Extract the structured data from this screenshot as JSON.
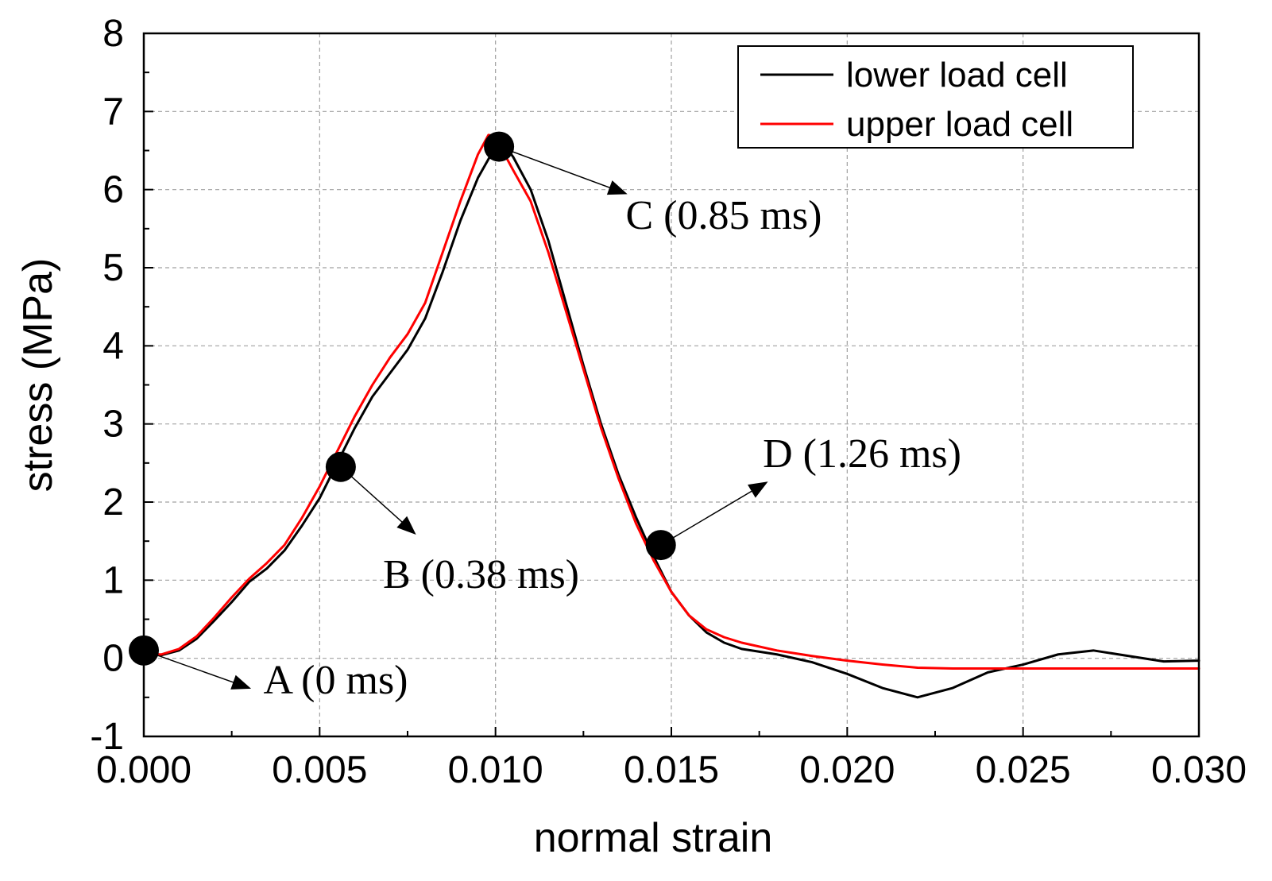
{
  "chart_data": {
    "type": "line",
    "title": "",
    "xlabel": "normal strain",
    "ylabel": "stress (MPa)",
    "xlim": [
      0.0,
      0.03
    ],
    "ylim": [
      -1,
      8
    ],
    "x_ticks": [
      "0.000",
      "0.005",
      "0.010",
      "0.015",
      "0.020",
      "0.025",
      "0.030"
    ],
    "x_tick_values": [
      0.0,
      0.005,
      0.01,
      0.015,
      0.02,
      0.025,
      0.03
    ],
    "y_ticks": [
      "-1",
      "0",
      "1",
      "2",
      "3",
      "4",
      "5",
      "6",
      "7",
      "8"
    ],
    "y_tick_values": [
      -1,
      0,
      1,
      2,
      3,
      4,
      5,
      6,
      7,
      8
    ],
    "grid": true,
    "legend_position": "top-right",
    "series": [
      {
        "name": "lower load cell",
        "color": "#000000",
        "x": [
          0.0,
          0.0005,
          0.001,
          0.0015,
          0.002,
          0.0025,
          0.003,
          0.0035,
          0.004,
          0.0045,
          0.005,
          0.0055,
          0.006,
          0.0065,
          0.007,
          0.0075,
          0.008,
          0.0085,
          0.009,
          0.0095,
          0.01,
          0.0102,
          0.0105,
          0.011,
          0.0115,
          0.012,
          0.0125,
          0.013,
          0.0135,
          0.014,
          0.0145,
          0.015,
          0.0155,
          0.016,
          0.0165,
          0.017,
          0.018,
          0.019,
          0.02,
          0.021,
          0.022,
          0.023,
          0.024,
          0.025,
          0.026,
          0.027,
          0.028,
          0.029,
          0.03
        ],
        "y": [
          0.05,
          0.04,
          0.1,
          0.25,
          0.48,
          0.72,
          0.98,
          1.15,
          1.38,
          1.7,
          2.05,
          2.5,
          2.95,
          3.35,
          3.65,
          3.95,
          4.35,
          4.95,
          5.6,
          6.15,
          6.55,
          6.6,
          6.42,
          6.0,
          5.35,
          4.55,
          3.75,
          3.0,
          2.35,
          1.8,
          1.3,
          0.85,
          0.55,
          0.33,
          0.2,
          0.12,
          0.05,
          -0.05,
          -0.2,
          -0.38,
          -0.5,
          -0.38,
          -0.18,
          -0.08,
          0.05,
          0.1,
          0.03,
          -0.04,
          -0.03
        ]
      },
      {
        "name": "upper load cell",
        "color": "#ff0000",
        "x": [
          0.0,
          0.0005,
          0.001,
          0.0015,
          0.002,
          0.0025,
          0.003,
          0.0035,
          0.004,
          0.0045,
          0.005,
          0.0055,
          0.006,
          0.0065,
          0.007,
          0.0075,
          0.008,
          0.0085,
          0.009,
          0.0095,
          0.0098,
          0.01,
          0.0102,
          0.0105,
          0.011,
          0.0115,
          0.012,
          0.0125,
          0.013,
          0.0135,
          0.014,
          0.0145,
          0.015,
          0.0155,
          0.016,
          0.0165,
          0.017,
          0.018,
          0.019,
          0.02,
          0.021,
          0.022,
          0.023,
          0.024,
          0.025,
          0.026,
          0.027,
          0.028,
          0.029,
          0.03
        ],
        "y": [
          0.05,
          0.05,
          0.12,
          0.28,
          0.52,
          0.78,
          1.02,
          1.22,
          1.45,
          1.8,
          2.2,
          2.65,
          3.1,
          3.5,
          3.85,
          4.15,
          4.55,
          5.2,
          5.85,
          6.45,
          6.7,
          6.68,
          6.5,
          6.25,
          5.85,
          5.2,
          4.45,
          3.7,
          2.95,
          2.3,
          1.72,
          1.25,
          0.85,
          0.55,
          0.37,
          0.27,
          0.2,
          0.1,
          0.03,
          -0.03,
          -0.08,
          -0.12,
          -0.13,
          -0.13,
          -0.13,
          -0.13,
          -0.13,
          -0.13,
          -0.13,
          -0.13
        ]
      }
    ],
    "annotations": [
      {
        "label": "A (0 ms)",
        "point": [
          0.0,
          0.1
        ],
        "text_at": [
          0.0034,
          -0.45
        ],
        "arrow_to": [
          0.003,
          -0.38
        ]
      },
      {
        "label": "B (0.38 ms)",
        "point": [
          0.0056,
          2.45
        ],
        "text_at": [
          0.0068,
          0.9
        ],
        "arrow_to": [
          0.0077,
          1.6
        ]
      },
      {
        "label": "C (0.85 ms)",
        "point": [
          0.0101,
          6.55
        ],
        "text_at": [
          0.0137,
          5.5
        ],
        "arrow_to": [
          0.0137,
          5.95
        ]
      },
      {
        "label": "D (1.26 ms)",
        "point": [
          0.0147,
          1.45
        ],
        "text_at": [
          0.0176,
          2.45
        ],
        "arrow_to": [
          0.0177,
          2.25
        ]
      }
    ]
  }
}
